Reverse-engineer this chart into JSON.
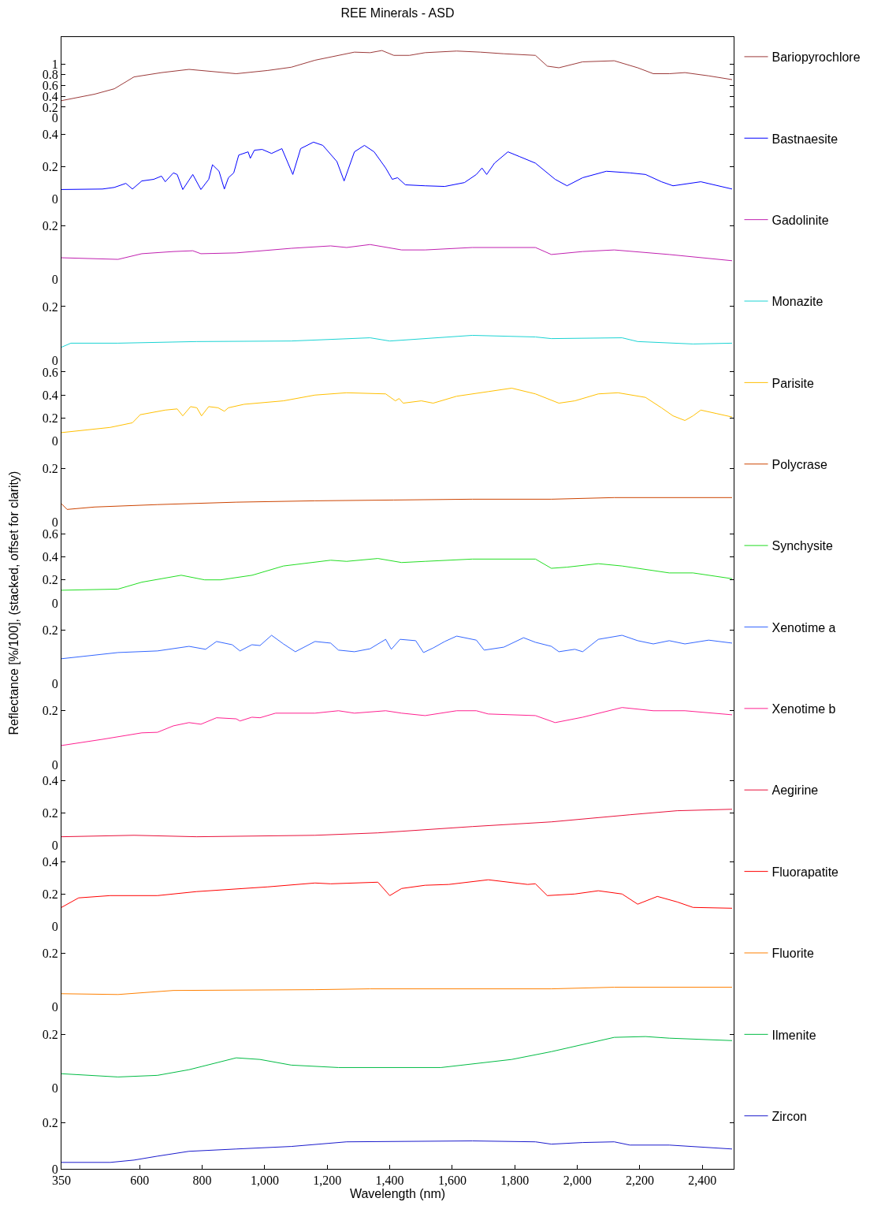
{
  "chart_data": [
    {
      "type": "line",
      "title": "REE Minerals - ASD",
      "xlim": [
        350,
        2500
      ],
      "ylim": [
        0,
        1.5
      ],
      "yticks": [
        0,
        0.2,
        0.4,
        0.6,
        0.8,
        1
      ],
      "tick_labels": "y",
      "legend": "right",
      "series": [
        {
          "name": "Bariopyrochlore",
          "color": "#9b3a3a",
          "x": [
            350,
            456,
            519,
            582,
            670,
            758,
            909,
            1010,
            1085,
            1161,
            1287,
            1337,
            1375,
            1413,
            1463,
            1513,
            1614,
            1690,
            1765,
            1866,
            1904,
            1941,
            2017,
            2118,
            2193,
            2243,
            2294,
            2344,
            2420,
            2495
          ],
          "values": [
            0.32,
            0.44,
            0.54,
            0.76,
            0.84,
            0.9,
            0.82,
            0.88,
            0.94,
            1.07,
            1.22,
            1.21,
            1.25,
            1.16,
            1.16,
            1.21,
            1.24,
            1.22,
            1.19,
            1.16,
            0.96,
            0.93,
            1.04,
            1.06,
            0.93,
            0.82,
            0.82,
            0.84,
            0.78,
            0.71
          ]
        }
      ]
    },
    {
      "type": "line",
      "xlim": [
        350,
        2500
      ],
      "ylim": [
        0,
        0.5
      ],
      "yticks": [
        0,
        0.2,
        0.4
      ],
      "tick_labels": "y",
      "legend": "right",
      "series": [
        {
          "name": "Bastnaesite",
          "color": "#0000ff",
          "x": [
            350,
            481,
            519,
            556,
            577,
            607,
            645,
            670,
            682,
            708,
            720,
            738,
            770,
            796,
            821,
            833,
            854,
            871,
            884,
            901,
            917,
            947,
            954,
            967,
            992,
            1022,
            1055,
            1090,
            1115,
            1156,
            1186,
            1231,
            1254,
            1287,
            1319,
            1350,
            1387,
            1408,
            1425,
            1450,
            1513,
            1576,
            1639,
            1677,
            1695,
            1710,
            1735,
            1778,
            1816,
            1866,
            1929,
            1967,
            2017,
            2093,
            2168,
            2218,
            2269,
            2306,
            2395,
            2495
          ],
          "values": [
            0.057,
            0.06,
            0.07,
            0.095,
            0.06,
            0.11,
            0.12,
            0.14,
            0.105,
            0.16,
            0.15,
            0.057,
            0.15,
            0.057,
            0.12,
            0.21,
            0.17,
            0.06,
            0.13,
            0.16,
            0.27,
            0.29,
            0.25,
            0.3,
            0.305,
            0.28,
            0.31,
            0.15,
            0.31,
            0.35,
            0.33,
            0.23,
            0.11,
            0.29,
            0.33,
            0.29,
            0.19,
            0.12,
            0.13,
            0.086,
            0.08,
            0.076,
            0.1,
            0.15,
            0.19,
            0.15,
            0.22,
            0.29,
            0.26,
            0.22,
            0.12,
            0.08,
            0.13,
            0.17,
            0.16,
            0.15,
            0.105,
            0.08,
            0.105,
            0.06
          ]
        }
      ]
    },
    {
      "type": "line",
      "xlim": [
        350,
        2500
      ],
      "ylim": [
        0,
        0.3
      ],
      "yticks": [
        0,
        0.2
      ],
      "tick_labels": "y",
      "legend": "right",
      "series": [
        {
          "name": "Gadolinite",
          "color": "#c020b0",
          "x": [
            350,
            531,
            607,
            708,
            770,
            796,
            909,
            1085,
            1211,
            1262,
            1337,
            1438,
            1513,
            1664,
            1866,
            1917,
            2017,
            2118,
            2294,
            2495
          ],
          "values": [
            0.081,
            0.075,
            0.096,
            0.104,
            0.107,
            0.096,
            0.099,
            0.116,
            0.125,
            0.119,
            0.13,
            0.11,
            0.11,
            0.119,
            0.119,
            0.093,
            0.104,
            0.11,
            0.093,
            0.07
          ]
        }
      ]
    },
    {
      "type": "line",
      "xlim": [
        350,
        2500
      ],
      "ylim": [
        0,
        0.3
      ],
      "yticks": [
        0,
        0.2
      ],
      "tick_labels": "y",
      "legend": "right",
      "series": [
        {
          "name": "Monazite",
          "color": "#1ad3d3",
          "x": [
            350,
            380,
            531,
            783,
            1085,
            1337,
            1400,
            1664,
            1866,
            1917,
            2143,
            2193,
            2370,
            2495
          ],
          "values": [
            0.049,
            0.064,
            0.064,
            0.07,
            0.072,
            0.084,
            0.072,
            0.093,
            0.087,
            0.081,
            0.084,
            0.07,
            0.061,
            0.064
          ]
        }
      ]
    },
    {
      "type": "line",
      "xlim": [
        350,
        2500
      ],
      "ylim": [
        0,
        0.7
      ],
      "yticks": [
        0,
        0.2,
        0.4,
        0.6
      ],
      "tick_labels": "y",
      "legend": "right",
      "series": [
        {
          "name": "Parisite",
          "color": "#ffbf00",
          "x": [
            350,
            506,
            577,
            602,
            682,
            720,
            738,
            763,
            783,
            798,
            821,
            851,
            871,
            884,
            934,
            1060,
            1161,
            1262,
            1387,
            1418,
            1430,
            1443,
            1501,
            1539,
            1614,
            1715,
            1790,
            1866,
            1941,
            1992,
            2067,
            2130,
            2218,
            2269,
            2306,
            2344,
            2370,
            2395,
            2445,
            2495
          ],
          "values": [
            0.075,
            0.12,
            0.16,
            0.23,
            0.27,
            0.28,
            0.22,
            0.3,
            0.29,
            0.22,
            0.3,
            0.29,
            0.26,
            0.29,
            0.32,
            0.35,
            0.4,
            0.42,
            0.41,
            0.35,
            0.37,
            0.33,
            0.35,
            0.33,
            0.39,
            0.43,
            0.46,
            0.41,
            0.33,
            0.35,
            0.41,
            0.42,
            0.38,
            0.29,
            0.22,
            0.18,
            0.22,
            0.27,
            0.24,
            0.21
          ]
        }
      ]
    },
    {
      "type": "line",
      "xlim": [
        350,
        2500
      ],
      "ylim": [
        0,
        0.3
      ],
      "yticks": [
        0,
        0.2
      ],
      "tick_labels": "y",
      "legend": "right",
      "series": [
        {
          "name": "Polycrase",
          "color": "#cc4400",
          "x": [
            350,
            368,
            456,
            657,
            909,
            1161,
            1413,
            1664,
            1917,
            2118,
            2495
          ],
          "values": [
            0.068,
            0.047,
            0.056,
            0.065,
            0.074,
            0.079,
            0.082,
            0.085,
            0.085,
            0.091,
            0.091
          ]
        }
      ]
    },
    {
      "type": "line",
      "xlim": [
        350,
        2500
      ],
      "ylim": [
        0,
        0.7
      ],
      "yticks": [
        0,
        0.2,
        0.4,
        0.6
      ],
      "tick_labels": "y",
      "legend": "right",
      "ylabel": "Reflectance [%/100], (stacked, offset for clarity)",
      "series": [
        {
          "name": "Synchysite",
          "color": "#22dd22",
          "x": [
            350,
            531,
            607,
            733,
            808,
            859,
            960,
            1060,
            1211,
            1262,
            1362,
            1438,
            1513,
            1664,
            1866,
            1917,
            1967,
            2067,
            2143,
            2294,
            2370,
            2495
          ],
          "values": [
            0.11,
            0.12,
            0.18,
            0.24,
            0.2,
            0.2,
            0.24,
            0.32,
            0.37,
            0.36,
            0.385,
            0.35,
            0.36,
            0.38,
            0.38,
            0.3,
            0.31,
            0.34,
            0.32,
            0.26,
            0.26,
            0.21
          ]
        }
      ]
    },
    {
      "type": "line",
      "xlim": [
        350,
        2500
      ],
      "ylim": [
        0,
        0.3
      ],
      "yticks": [
        0,
        0.2
      ],
      "tick_labels": "y",
      "legend": "right",
      "series": [
        {
          "name": "Xenotime a",
          "color": "#3366ff",
          "x": [
            350,
            531,
            657,
            758,
            811,
            846,
            896,
            921,
            959,
            985,
            1022,
            1060,
            1098,
            1161,
            1211,
            1236,
            1287,
            1337,
            1387,
            1405,
            1433,
            1483,
            1508,
            1539,
            1576,
            1614,
            1677,
            1702,
            1765,
            1828,
            1866,
            1917,
            1941,
            1992,
            2017,
            2067,
            2143,
            2193,
            2243,
            2294,
            2344,
            2420,
            2495
          ],
          "values": [
            0.093,
            0.116,
            0.122,
            0.139,
            0.128,
            0.157,
            0.145,
            0.122,
            0.145,
            0.142,
            0.18,
            0.148,
            0.119,
            0.157,
            0.151,
            0.125,
            0.119,
            0.13,
            0.165,
            0.128,
            0.165,
            0.16,
            0.116,
            0.133,
            0.157,
            0.177,
            0.162,
            0.125,
            0.136,
            0.171,
            0.154,
            0.139,
            0.119,
            0.128,
            0.119,
            0.165,
            0.18,
            0.16,
            0.148,
            0.16,
            0.148,
            0.162,
            0.151
          ]
        }
      ]
    },
    {
      "type": "line",
      "xlim": [
        350,
        2500
      ],
      "ylim": [
        0,
        0.3
      ],
      "yticks": [
        0,
        0.2
      ],
      "tick_labels": "y",
      "legend": "right",
      "series": [
        {
          "name": "Xenotime b",
          "color": "#ff2090",
          "x": [
            350,
            481,
            607,
            657,
            708,
            758,
            796,
            846,
            909,
            921,
            959,
            985,
            1035,
            1161,
            1236,
            1287,
            1387,
            1438,
            1513,
            1614,
            1677,
            1715,
            1866,
            1929,
            2017,
            2143,
            2243,
            2344,
            2495
          ],
          "values": [
            0.071,
            0.094,
            0.118,
            0.12,
            0.144,
            0.156,
            0.15,
            0.174,
            0.17,
            0.162,
            0.176,
            0.174,
            0.191,
            0.191,
            0.2,
            0.191,
            0.2,
            0.191,
            0.182,
            0.2,
            0.2,
            0.188,
            0.182,
            0.156,
            0.176,
            0.212,
            0.2,
            0.2,
            0.185
          ]
        }
      ]
    },
    {
      "type": "line",
      "xlim": [
        350,
        2500
      ],
      "ylim": [
        0,
        0.5
      ],
      "yticks": [
        0,
        0.2,
        0.4
      ],
      "tick_labels": "y",
      "legend": "right",
      "series": [
        {
          "name": "Aegirine",
          "color": "#e8103a",
          "x": [
            350,
            582,
            783,
            1161,
            1362,
            1664,
            1917,
            2168,
            2319,
            2495
          ],
          "values": [
            0.054,
            0.063,
            0.054,
            0.063,
            0.078,
            0.117,
            0.146,
            0.19,
            0.215,
            0.224
          ]
        }
      ]
    },
    {
      "type": "line",
      "xlim": [
        350,
        2500
      ],
      "ylim": [
        0,
        0.5
      ],
      "yticks": [
        0,
        0.2,
        0.4
      ],
      "tick_labels": "y",
      "legend": "right",
      "series": [
        {
          "name": "Fluorapatite",
          "color": "#ff0000",
          "x": [
            350,
            405,
            506,
            657,
            783,
            1010,
            1161,
            1211,
            1362,
            1400,
            1438,
            1513,
            1589,
            1715,
            1841,
            1866,
            1904,
            1992,
            2067,
            2143,
            2193,
            2256,
            2319,
            2370,
            2495
          ],
          "values": [
            0.117,
            0.176,
            0.19,
            0.19,
            0.215,
            0.244,
            0.268,
            0.263,
            0.273,
            0.19,
            0.234,
            0.254,
            0.259,
            0.288,
            0.259,
            0.263,
            0.19,
            0.2,
            0.22,
            0.2,
            0.137,
            0.185,
            0.151,
            0.117,
            0.112
          ]
        }
      ]
    },
    {
      "type": "line",
      "xlim": [
        350,
        2500
      ],
      "ylim": [
        0,
        0.3
      ],
      "yticks": [
        0,
        0.2
      ],
      "tick_labels": "y",
      "legend": "right",
      "series": [
        {
          "name": "Fluorite",
          "color": "#ff8000",
          "x": [
            350,
            531,
            708,
            1161,
            1337,
            1917,
            2118,
            2495
          ],
          "values": [
            0.05,
            0.047,
            0.062,
            0.065,
            0.068,
            0.068,
            0.074,
            0.074
          ]
        }
      ]
    },
    {
      "type": "line",
      "xlim": [
        350,
        2500
      ],
      "ylim": [
        0,
        0.3
      ],
      "yticks": [
        0,
        0.2
      ],
      "tick_labels": "y",
      "legend": "right",
      "series": [
        {
          "name": "Ilmenite",
          "color": "#00bb44",
          "x": [
            350,
            531,
            657,
            758,
            909,
            985,
            1085,
            1236,
            1564,
            1790,
            1917,
            2118,
            2218,
            2294,
            2495
          ],
          "values": [
            0.053,
            0.041,
            0.047,
            0.068,
            0.112,
            0.106,
            0.085,
            0.076,
            0.076,
            0.106,
            0.135,
            0.188,
            0.191,
            0.185,
            0.176
          ]
        }
      ]
    },
    {
      "type": "line",
      "xlabel": "Wavelength (nm)",
      "xlim": [
        350,
        2500
      ],
      "xticks": [
        350,
        600,
        800,
        {
          "value": 1000,
          "label": "1,000"
        },
        {
          "value": 1200,
          "label": "1,200"
        },
        {
          "value": 1400,
          "label": "1,400"
        },
        {
          "value": 1600,
          "label": "1,600"
        },
        {
          "value": 1800,
          "label": "1,800"
        },
        {
          "value": 2000,
          "label": "2,000"
        },
        {
          "value": 2200,
          "label": "2,200"
        },
        {
          "value": 2400,
          "label": "2,400"
        }
      ],
      "ylim": [
        0,
        0.35
      ],
      "yticks": [
        0,
        0.2
      ],
      "legend": "right",
      "series": [
        {
          "name": "Zircon",
          "color": "#1a1acc",
          "x": [
            350,
            506,
            582,
            657,
            758,
            909,
            1085,
            1262,
            1664,
            1866,
            1917,
            2017,
            2118,
            2168,
            2294,
            2495
          ],
          "values": [
            0.028,
            0.028,
            0.038,
            0.055,
            0.076,
            0.086,
            0.097,
            0.117,
            0.121,
            0.117,
            0.107,
            0.114,
            0.117,
            0.103,
            0.103,
            0.086
          ]
        }
      ]
    }
  ]
}
